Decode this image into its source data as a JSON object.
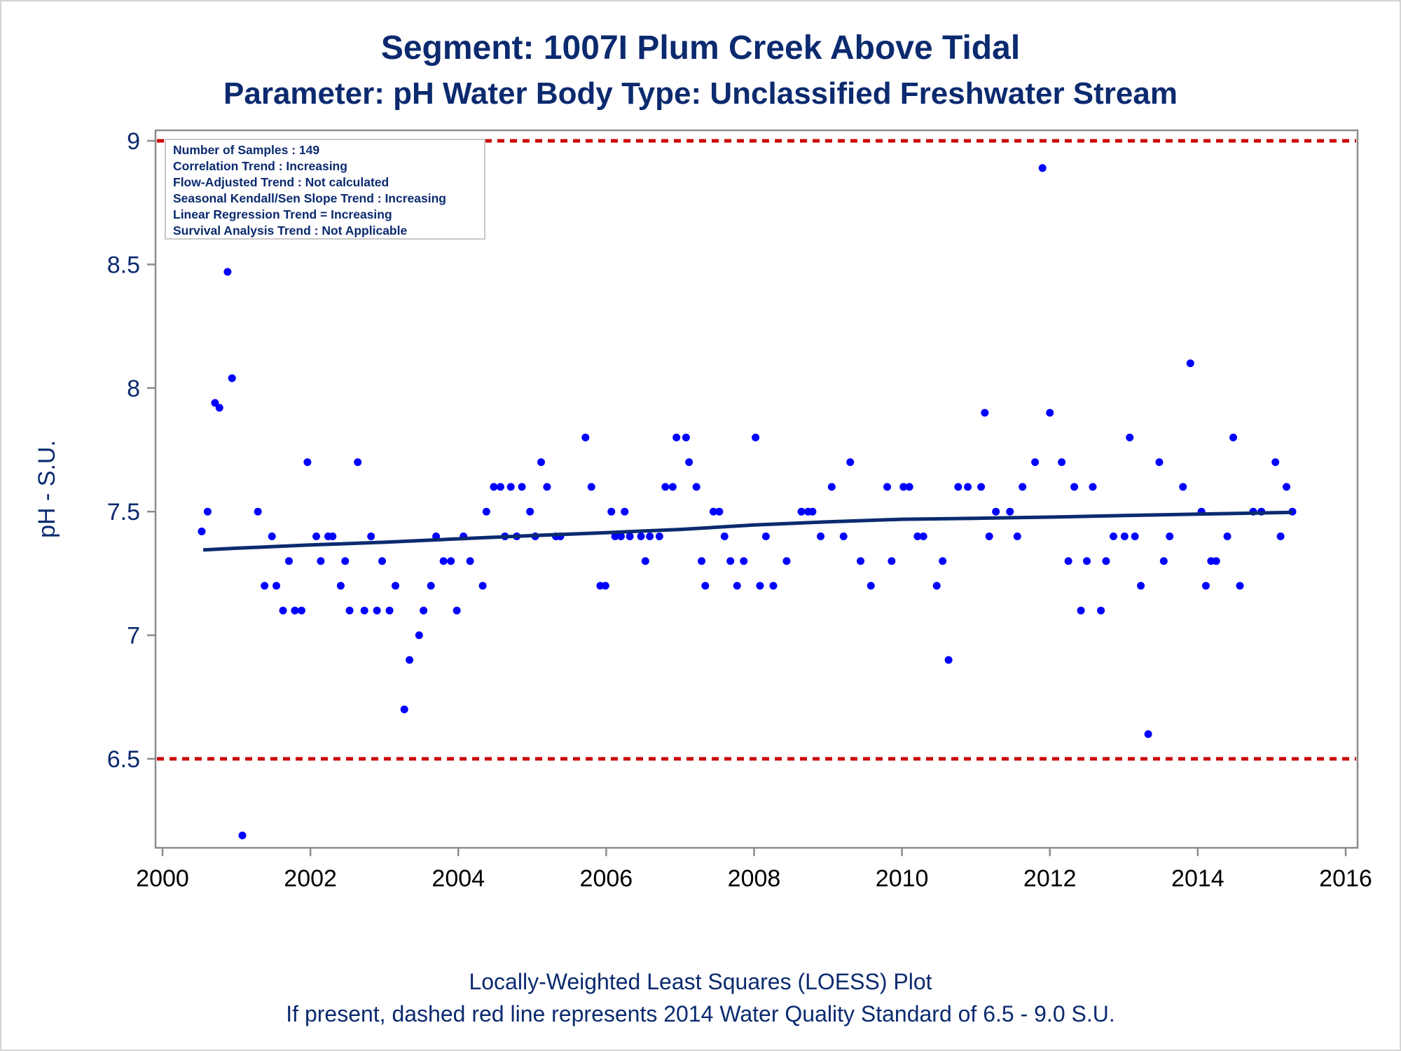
{
  "colors": {
    "title": "#0b2a6f",
    "point": "#0000ff",
    "trend_line": "#0b2a6f",
    "standard_line": "#cc0000",
    "axis": "#8c8c8c"
  },
  "chart_data": {
    "type": "scatter",
    "title": "Segment: 1007I  Plum Creek Above Tidal",
    "subtitle": "Parameter: pH   Water Body Type: Unclassified Freshwater Stream",
    "ylabel": "pH - S.U.",
    "xlabel": "",
    "xlim": [
      2000,
      2016
    ],
    "ylim": [
      6.2,
      9.0
    ],
    "x_ticks": [
      "2000",
      "2002",
      "2004",
      "2006",
      "2008",
      "2010",
      "2012",
      "2014",
      "2016"
    ],
    "y_ticks": [
      "6.5",
      "7",
      "7.5",
      "8",
      "8.5",
      "9"
    ],
    "grid": false,
    "standard_lines": [
      9.0,
      6.5
    ],
    "legend_placement": "top-left",
    "legend_lines": [
      "Number of Samples : 149",
      "Correlation Trend : Increasing",
      "Flow-Adjusted Trend : Not calculated",
      "Seasonal Kendall/Sen Slope Trend : Increasing",
      "Linear Regression Trend = Increasing",
      "Survival Analysis Trend : Not Applicable"
    ],
    "points": [
      [
        2000.53,
        7.42
      ],
      [
        2000.61,
        7.5
      ],
      [
        2000.71,
        7.94
      ],
      [
        2000.77,
        7.92
      ],
      [
        2000.88,
        8.47
      ],
      [
        2000.94,
        8.04
      ],
      [
        2001.08,
        6.19
      ],
      [
        2001.29,
        7.5
      ],
      [
        2001.38,
        7.2
      ],
      [
        2001.48,
        7.4
      ],
      [
        2001.54,
        7.2
      ],
      [
        2001.63,
        7.1
      ],
      [
        2001.71,
        7.3
      ],
      [
        2001.79,
        7.1
      ],
      [
        2001.88,
        7.1
      ],
      [
        2001.96,
        7.7
      ],
      [
        2002.08,
        7.4
      ],
      [
        2002.14,
        7.3
      ],
      [
        2002.24,
        7.4
      ],
      [
        2002.3,
        7.4
      ],
      [
        2002.41,
        7.2
      ],
      [
        2002.47,
        7.3
      ],
      [
        2002.53,
        7.1
      ],
      [
        2002.64,
        7.7
      ],
      [
        2002.73,
        7.1
      ],
      [
        2002.82,
        7.4
      ],
      [
        2002.9,
        7.1
      ],
      [
        2002.97,
        7.3
      ],
      [
        2003.07,
        7.1
      ],
      [
        2003.15,
        7.2
      ],
      [
        2003.27,
        6.7
      ],
      [
        2003.34,
        6.9
      ],
      [
        2003.47,
        7.0
      ],
      [
        2003.53,
        7.1
      ],
      [
        2003.63,
        7.2
      ],
      [
        2003.7,
        7.4
      ],
      [
        2003.8,
        7.3
      ],
      [
        2003.9,
        7.3
      ],
      [
        2003.98,
        7.1
      ],
      [
        2004.07,
        7.4
      ],
      [
        2004.16,
        7.3
      ],
      [
        2004.33,
        7.2
      ],
      [
        2004.38,
        7.5
      ],
      [
        2004.48,
        7.6
      ],
      [
        2004.57,
        7.6
      ],
      [
        2004.63,
        7.4
      ],
      [
        2004.71,
        7.6
      ],
      [
        2004.79,
        7.4
      ],
      [
        2004.86,
        7.6
      ],
      [
        2004.97,
        7.5
      ],
      [
        2005.04,
        7.4
      ],
      [
        2005.12,
        7.7
      ],
      [
        2005.2,
        7.6
      ],
      [
        2005.32,
        7.4
      ],
      [
        2005.38,
        7.4
      ],
      [
        2005.72,
        7.8
      ],
      [
        2005.8,
        7.6
      ],
      [
        2005.92,
        7.2
      ],
      [
        2005.99,
        7.2
      ],
      [
        2006.07,
        7.5
      ],
      [
        2006.12,
        7.4
      ],
      [
        2006.2,
        7.4
      ],
      [
        2006.25,
        7.5
      ],
      [
        2006.32,
        7.4
      ],
      [
        2006.47,
        7.4
      ],
      [
        2006.53,
        7.3
      ],
      [
        2006.59,
        7.4
      ],
      [
        2006.72,
        7.4
      ],
      [
        2006.8,
        7.6
      ],
      [
        2006.9,
        7.6
      ],
      [
        2006.95,
        7.8
      ],
      [
        2007.08,
        7.8
      ],
      [
        2007.12,
        7.7
      ],
      [
        2007.22,
        7.6
      ],
      [
        2007.29,
        7.3
      ],
      [
        2007.34,
        7.2
      ],
      [
        2007.45,
        7.5
      ],
      [
        2007.53,
        7.5
      ],
      [
        2007.6,
        7.4
      ],
      [
        2007.68,
        7.3
      ],
      [
        2007.77,
        7.2
      ],
      [
        2007.86,
        7.3
      ],
      [
        2008.02,
        7.8
      ],
      [
        2008.08,
        7.2
      ],
      [
        2008.16,
        7.4
      ],
      [
        2008.26,
        7.2
      ],
      [
        2008.44,
        7.3
      ],
      [
        2008.64,
        7.5
      ],
      [
        2008.73,
        7.5
      ],
      [
        2008.79,
        7.5
      ],
      [
        2008.9,
        7.4
      ],
      [
        2009.05,
        7.6
      ],
      [
        2009.21,
        7.4
      ],
      [
        2009.3,
        7.7
      ],
      [
        2009.44,
        7.3
      ],
      [
        2009.58,
        7.2
      ],
      [
        2009.8,
        7.6
      ],
      [
        2009.86,
        7.3
      ],
      [
        2010.02,
        7.6
      ],
      [
        2010.1,
        7.6
      ],
      [
        2010.21,
        7.4
      ],
      [
        2010.29,
        7.4
      ],
      [
        2010.47,
        7.2
      ],
      [
        2010.55,
        7.3
      ],
      [
        2010.63,
        6.9
      ],
      [
        2010.76,
        7.6
      ],
      [
        2010.89,
        7.6
      ],
      [
        2011.07,
        7.6
      ],
      [
        2011.12,
        7.9
      ],
      [
        2011.18,
        7.4
      ],
      [
        2011.27,
        7.5
      ],
      [
        2011.46,
        7.5
      ],
      [
        2011.56,
        7.4
      ],
      [
        2011.63,
        7.6
      ],
      [
        2011.8,
        7.7
      ],
      [
        2011.9,
        8.89
      ],
      [
        2012.0,
        7.9
      ],
      [
        2012.16,
        7.7
      ],
      [
        2012.25,
        7.3
      ],
      [
        2012.33,
        7.6
      ],
      [
        2012.42,
        7.1
      ],
      [
        2012.5,
        7.3
      ],
      [
        2012.58,
        7.6
      ],
      [
        2012.69,
        7.1
      ],
      [
        2012.76,
        7.3
      ],
      [
        2012.86,
        7.4
      ],
      [
        2013.01,
        7.4
      ],
      [
        2013.08,
        7.8
      ],
      [
        2013.15,
        7.4
      ],
      [
        2013.23,
        7.2
      ],
      [
        2013.33,
        6.6
      ],
      [
        2013.48,
        7.7
      ],
      [
        2013.54,
        7.3
      ],
      [
        2013.62,
        7.4
      ],
      [
        2013.8,
        7.6
      ],
      [
        2013.9,
        8.1
      ],
      [
        2014.05,
        7.5
      ],
      [
        2014.11,
        7.2
      ],
      [
        2014.18,
        7.3
      ],
      [
        2014.25,
        7.3
      ],
      [
        2014.4,
        7.4
      ],
      [
        2014.48,
        7.8
      ],
      [
        2014.57,
        7.2
      ],
      [
        2014.75,
        7.5
      ],
      [
        2014.86,
        7.5
      ],
      [
        2015.05,
        7.7
      ],
      [
        2015.12,
        7.4
      ],
      [
        2015.2,
        7.6
      ],
      [
        2015.28,
        7.5
      ]
    ],
    "loess_line": [
      [
        2000.55,
        7.345
      ],
      [
        2001.0,
        7.352
      ],
      [
        2002.0,
        7.365
      ],
      [
        2003.0,
        7.376
      ],
      [
        2004.0,
        7.39
      ],
      [
        2005.0,
        7.403
      ],
      [
        2006.0,
        7.415
      ],
      [
        2007.0,
        7.428
      ],
      [
        2008.0,
        7.446
      ],
      [
        2009.0,
        7.459
      ],
      [
        2010.0,
        7.469
      ],
      [
        2011.0,
        7.473
      ],
      [
        2012.0,
        7.478
      ],
      [
        2013.0,
        7.484
      ],
      [
        2014.0,
        7.49
      ],
      [
        2015.28,
        7.497
      ]
    ]
  },
  "footnote": {
    "line1": "Locally-Weighted Least Squares (LOESS) Plot",
    "line2": "If present, dashed red line represents 2014 Water Quality Standard of 6.5 - 9.0 S.U."
  }
}
